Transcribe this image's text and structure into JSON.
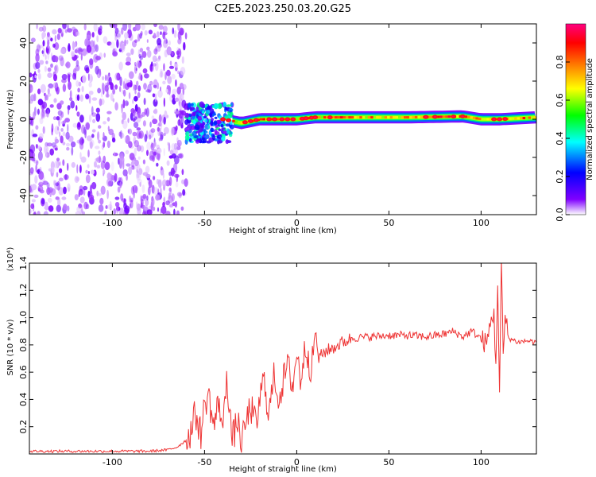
{
  "title": "C2E5.2023.250.03.20.G25",
  "chart_data": [
    {
      "type": "heatmap",
      "title": "",
      "xlabel": "Height of straight line (km)",
      "ylabel": "Frequency (Hz)",
      "xlim": [
        -145,
        130
      ],
      "ylim": [
        -50,
        50
      ],
      "xticks": [
        -100,
        -50,
        0,
        50,
        100
      ],
      "xtick_labels": [
        "-100",
        "-50",
        "0",
        "50",
        "100"
      ],
      "yticks": [
        -40,
        -20,
        0,
        20,
        40
      ],
      "ytick_labels": [
        "-40",
        "-20",
        "0",
        "20",
        "40"
      ],
      "colorbar": {
        "label": "Normalized spectral amplitude",
        "range": [
          0,
          1
        ],
        "ticks": [
          0.0,
          0.2,
          0.4,
          0.6,
          0.8
        ],
        "tick_labels": [
          "0.0",
          "0.2",
          "0.4",
          "0.6",
          "0.8"
        ],
        "colormap": [
          "#ffffff",
          "#8000ff",
          "#0000ff",
          "#00ffff",
          "#00ff00",
          "#ffff00",
          "#ff8000",
          "#ff0000",
          "#ff0080"
        ]
      },
      "regions": [
        {
          "x_range": [
            -145,
            -60
          ],
          "freq_range": [
            -50,
            50
          ],
          "amplitude_range": [
            0.0,
            0.15
          ]
        },
        {
          "x_range": [
            -60,
            -35
          ],
          "freq_range": [
            -12,
            8
          ],
          "amplitude_range": [
            0.1,
            0.45
          ]
        },
        {
          "x_range": [
            -35,
            130
          ],
          "freq_range": [
            -3,
            3
          ],
          "amplitude_range": [
            0.3,
            1.0
          ]
        }
      ],
      "ridge": [
        {
          "x": -60,
          "f": -3
        },
        {
          "x": -50,
          "f": -2
        },
        {
          "x": -40,
          "f": 0
        },
        {
          "x": -30,
          "f": -2
        },
        {
          "x": -20,
          "f": 0
        },
        {
          "x": -10,
          "f": 0
        },
        {
          "x": 0,
          "f": 0
        },
        {
          "x": 10,
          "f": 1
        },
        {
          "x": 30,
          "f": 1
        },
        {
          "x": 60,
          "f": 1
        },
        {
          "x": 90,
          "f": 1.5
        },
        {
          "x": 100,
          "f": 0
        },
        {
          "x": 110,
          "f": 0
        },
        {
          "x": 130,
          "f": 1
        }
      ]
    },
    {
      "type": "line",
      "title": "",
      "xlabel": "Height of straight line (km)",
      "ylabel": "SNR (10 * v/v)",
      "y_scale_label": "(x10⁴)",
      "xlim": [
        -145,
        130
      ],
      "ylim": [
        0,
        1.4
      ],
      "xticks": [
        -100,
        -50,
        0,
        50,
        100
      ],
      "xtick_labels": [
        "-100",
        "-50",
        "0",
        "50",
        "100"
      ],
      "yticks": [
        0.2,
        0.4,
        0.6,
        0.8,
        1.0,
        1.2,
        1.4
      ],
      "ytick_labels": [
        "0.2",
        "0.4",
        "0.6",
        "0.8",
        "1.0",
        "1.2",
        "1.4"
      ],
      "color": "#ee3333",
      "series": [
        {
          "x": [
            -145,
            -100,
            -80,
            -70,
            -65,
            -60,
            -57,
            -55,
            -52,
            -50,
            -48,
            -45,
            -42,
            -40,
            -38,
            -35,
            -32,
            -30,
            -28,
            -25,
            -22,
            -20,
            -18,
            -15,
            -12,
            -10,
            -8,
            -5,
            -2,
            0,
            2,
            5,
            8,
            10,
            12,
            15,
            20,
            25,
            30,
            40,
            50,
            60,
            70,
            80,
            85,
            90,
            95,
            100,
            103,
            105,
            107,
            108,
            109,
            110,
            111,
            112,
            113,
            115,
            120,
            125,
            130
          ],
          "y": [
            0.02,
            0.02,
            0.02,
            0.03,
            0.05,
            0.1,
            0.18,
            0.3,
            0.15,
            0.35,
            0.45,
            0.2,
            0.4,
            0.15,
            0.6,
            0.1,
            0.25,
            0.05,
            0.2,
            0.35,
            0.2,
            0.4,
            0.55,
            0.3,
            0.6,
            0.4,
            0.5,
            0.65,
            0.5,
            0.75,
            0.55,
            0.8,
            0.6,
            0.9,
            0.7,
            0.75,
            0.78,
            0.82,
            0.85,
            0.86,
            0.87,
            0.87,
            0.86,
            0.88,
            0.9,
            0.86,
            0.9,
            0.85,
            0.8,
            0.95,
            1.05,
            0.6,
            1.3,
            0.45,
            1.4,
            0.7,
            1.0,
            0.85,
            0.82,
            0.83,
            0.82
          ]
        }
      ]
    }
  ]
}
